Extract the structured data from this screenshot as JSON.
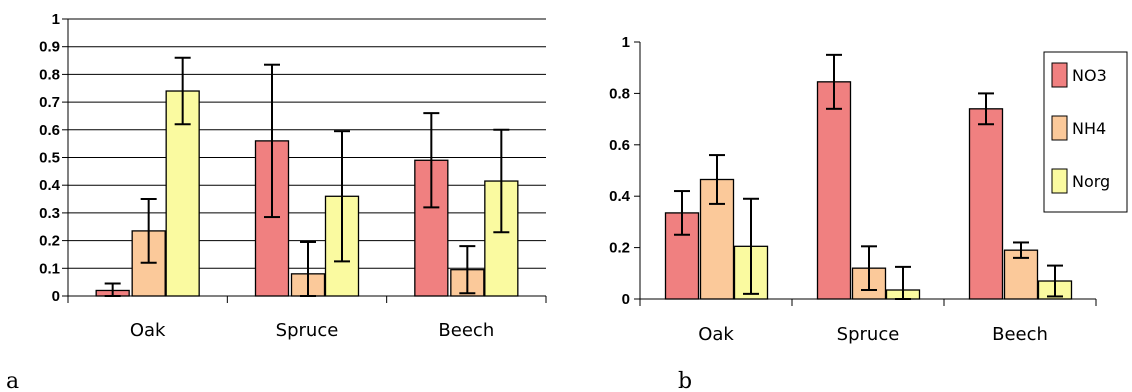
{
  "colors": {
    "NO3": "#f08080",
    "NH4": "#fbc99a",
    "Norg": "#fafaa0"
  },
  "chart_data": [
    {
      "panel": "a",
      "type": "bar",
      "categories": [
        "Oak",
        "Spruce",
        "Beech"
      ],
      "ylim": [
        0,
        1
      ],
      "yticks": [
        "0",
        "0.1",
        "0.2",
        "0.3",
        "0.4",
        "0.5",
        "0.6",
        "0.7",
        "0.8",
        "0.9",
        "1"
      ],
      "grid": true,
      "legend": "none",
      "series": [
        {
          "name": "NO3",
          "values": [
            0.02,
            0.56,
            0.49
          ],
          "errors": [
            0.025,
            0.275,
            0.17
          ]
        },
        {
          "name": "NH4",
          "values": [
            0.235,
            0.08,
            0.095
          ],
          "errors": [
            0.115,
            0.115,
            0.085
          ]
        },
        {
          "name": "Norg",
          "values": [
            0.74,
            0.36,
            0.415
          ],
          "errors": [
            0.12,
            0.235,
            0.185
          ]
        }
      ]
    },
    {
      "panel": "b",
      "type": "bar",
      "categories": [
        "Oak",
        "Spruce",
        "Beech"
      ],
      "ylim": [
        0,
        1
      ],
      "yticks": [
        "0",
        "0.2",
        "0.4",
        "0.6",
        "0.8",
        "1"
      ],
      "grid": false,
      "legend": "right",
      "series": [
        {
          "name": "NO3",
          "values": [
            0.335,
            0.845,
            0.74
          ],
          "errors": [
            0.085,
            0.105,
            0.06
          ]
        },
        {
          "name": "NH4",
          "values": [
            0.465,
            0.12,
            0.19
          ],
          "errors": [
            0.095,
            0.085,
            0.03
          ]
        },
        {
          "name": "Norg",
          "values": [
            0.205,
            0.035,
            0.07
          ],
          "errors": [
            0.185,
            0.09,
            0.06
          ]
        }
      ]
    }
  ]
}
